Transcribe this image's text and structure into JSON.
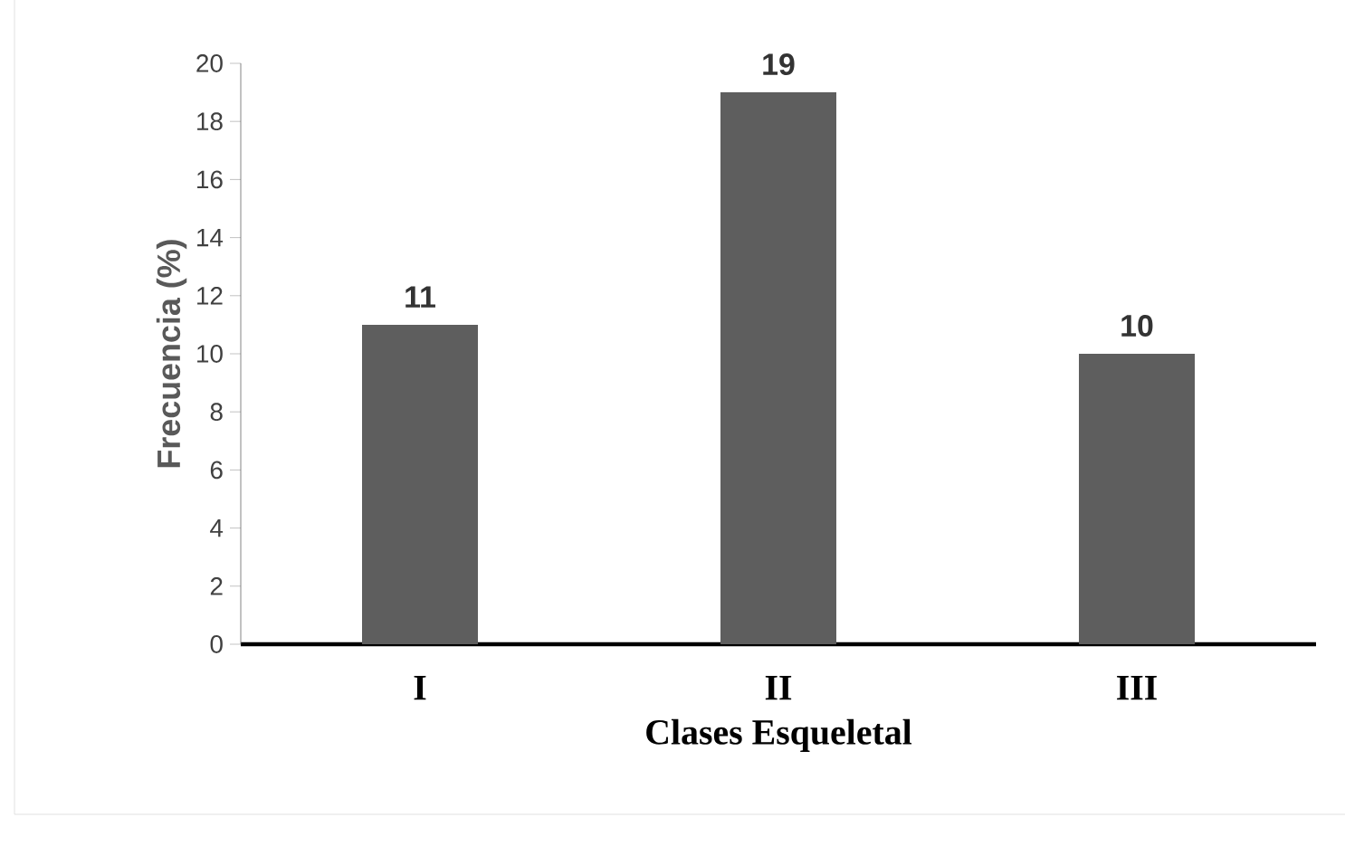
{
  "chart_data": {
    "type": "bar",
    "xlabel": "Clases Esqueletal",
    "ylabel": "Frecuencia (%)",
    "categories": [
      "I",
      "II",
      "III"
    ],
    "values": [
      11,
      19,
      10
    ],
    "color": "#5e5e5e",
    "ylim": [
      0,
      20
    ],
    "yticks": [
      0,
      2,
      4,
      6,
      8,
      10,
      12,
      14,
      16,
      18,
      20
    ],
    "data_labels": true
  }
}
